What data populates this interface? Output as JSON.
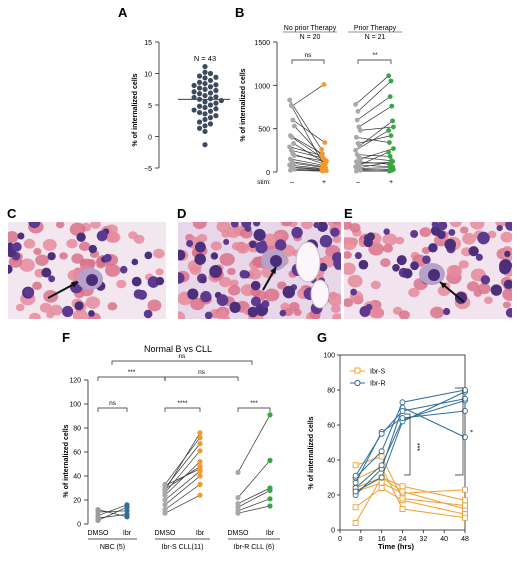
{
  "figure": {
    "panels": {
      "A": {
        "letter": "A",
        "ylabel": "% of internalized cells",
        "annotation": "N = 43",
        "yticks": [
          "15",
          "10",
          "5",
          "0",
          "−5"
        ]
      },
      "B": {
        "letter": "B",
        "ylabel": "% of internalized cells",
        "group1_title": "No prior Therapy",
        "group1_n": "N = 20",
        "group2_title": "Prior Therapy",
        "group2_n": "N = 21",
        "sig1": "ns",
        "sig2": "**",
        "stim_label": "stim:",
        "stim_minus": "–",
        "stim_plus": "+",
        "yticks": [
          "1500",
          "1000",
          "500",
          "0"
        ]
      },
      "C": {
        "letter": "C"
      },
      "D": {
        "letter": "D"
      },
      "E": {
        "letter": "E"
      },
      "F": {
        "letter": "F",
        "title": "Normal B vs CLL",
        "ylabel": "% of internalized cells",
        "yticks": [
          "120",
          "100",
          "80",
          "60",
          "40",
          "20",
          "0"
        ],
        "xlabels": [
          "DMSO",
          "Ibr",
          "DMSO",
          "Ibr",
          "DMSO",
          "Ibr"
        ],
        "groups": [
          "NBC (5)",
          "Ibr-S CLL(11)",
          "Ibr-R CLL (6)"
        ],
        "sig": [
          "ns",
          "****",
          "***",
          "***",
          "ns",
          "ns"
        ]
      },
      "G": {
        "letter": "G",
        "ylabel": "% of internalized cells",
        "xlabel": "Time (hrs)",
        "xticks": [
          "0",
          "8",
          "16",
          "24",
          "32",
          "40",
          "48"
        ],
        "yticks": [
          "100",
          "80",
          "60",
          "40",
          "20",
          "0"
        ],
        "legend": [
          "Ibr-S",
          "Ibr-R"
        ],
        "sig1": "***",
        "sig2": "*"
      }
    }
  },
  "chart_data": [
    {
      "panel": "A",
      "type": "scatter",
      "ylabel": "% of internalized cells",
      "ylim": [
        -5,
        15
      ],
      "n": 43,
      "median": 5.9,
      "values": [
        11.1,
        10.2,
        10.0,
        9.6,
        9.4,
        9.3,
        8.9,
        8.6,
        8.4,
        8.2,
        8.1,
        7.9,
        7.7,
        7.5,
        7.3,
        7.1,
        6.9,
        6.8,
        6.5,
        6.3,
        6.2,
        6.0,
        5.9,
        5.7,
        5.5,
        5.3,
        5.0,
        4.8,
        4.6,
        4.4,
        4.2,
        4.0,
        3.8,
        3.6,
        3.3,
        3.0,
        2.7,
        2.3,
        2.0,
        1.7,
        1.3,
        0.8,
        -1.3
      ]
    },
    {
      "panel": "B",
      "type": "line",
      "ylabel": "% of internalized cells",
      "ylim": [
        0,
        1500
      ],
      "categories": [
        "–",
        "+"
      ],
      "groups": [
        {
          "name": "No prior Therapy",
          "pairs": [
            [
              830,
              260
            ],
            [
              770,
              90
            ],
            [
              600,
              340
            ],
            [
              530,
              130
            ],
            [
              420,
              210
            ],
            [
              400,
              150
            ],
            [
              330,
              100
            ],
            [
              290,
              190
            ],
            [
              250,
              160
            ],
            [
              210,
              90
            ],
            [
              190,
              120
            ],
            [
              150,
              80
            ],
            [
              120,
              60
            ],
            [
              100,
              50
            ],
            [
              80,
              40
            ],
            [
              60,
              30
            ],
            [
              50,
              20
            ],
            [
              30,
              15
            ],
            [
              20,
              10
            ],
            [
              760,
              1010
            ]
          ]
        },
        {
          "name": "Prior Therapy",
          "pairs": [
            [
              780,
              1110
            ],
            [
              600,
              870
            ],
            [
              520,
              760
            ],
            [
              480,
              520
            ],
            [
              400,
              340
            ],
            [
              330,
              420
            ],
            [
              300,
              590
            ],
            [
              250,
              480
            ],
            [
              200,
              180
            ],
            [
              170,
              130
            ],
            [
              150,
              270
            ],
            [
              120,
              90
            ],
            [
              100,
              110
            ],
            [
              80,
              60
            ],
            [
              60,
              230
            ],
            [
              40,
              50
            ],
            [
              30,
              20
            ],
            [
              20,
              30
            ],
            [
              10,
              10
            ],
            [
              700,
              1050
            ],
            [
              50,
              120
            ]
          ]
        }
      ]
    },
    {
      "panel": "F",
      "type": "line",
      "title": "Normal B vs CLL",
      "ylabel": "% of internalized cells",
      "ylim": [
        0,
        120
      ],
      "categories": [
        "DMSO",
        "Ibr"
      ],
      "groups": [
        {
          "name": "NBC (5)",
          "pairs": [
            [
              3,
              14
            ],
            [
              5,
              8
            ],
            [
              7,
              16
            ],
            [
              10,
              11
            ],
            [
              12,
              6
            ]
          ]
        },
        {
          "name": "Ibr-S CLL(11)",
          "pairs": [
            [
              28,
              76
            ],
            [
              33,
              72
            ],
            [
              30,
              67
            ],
            [
              26,
              61
            ],
            [
              24,
              52
            ],
            [
              29,
              48
            ],
            [
              32,
              46
            ],
            [
              20,
              44
            ],
            [
              16,
              40
            ],
            [
              12,
              33
            ],
            [
              9,
              24
            ]
          ]
        },
        {
          "name": "Ibr-R CLL (6)",
          "pairs": [
            [
              43,
              91
            ],
            [
              22,
              53
            ],
            [
              17,
              30
            ],
            [
              14,
              28
            ],
            [
              11,
              21
            ],
            [
              9,
              15
            ]
          ]
        }
      ]
    },
    {
      "panel": "G",
      "type": "line",
      "ylabel": "% of internalized cells",
      "xlabel": "Time (hrs)",
      "xlim": [
        0,
        48
      ],
      "ylim": [
        0,
        100
      ],
      "x": [
        6,
        16,
        24,
        48
      ],
      "series": [
        {
          "name": "Ibr-S",
          "lines": [
            [
              4,
              30,
              25,
              17
            ],
            [
              13,
              24,
              17,
              9
            ],
            [
              22,
              27,
              21,
              23
            ],
            [
              24,
              30,
              22,
              12
            ],
            [
              29,
              36,
              12,
              7
            ],
            [
              37,
              42,
              18,
              14
            ]
          ]
        },
        {
          "name": "Ibr-R",
          "lines": [
            [
              20,
              35,
              70,
              53
            ],
            [
              24,
              37,
              63,
              74
            ],
            [
              22,
              30,
              62,
              79
            ],
            [
              30,
              45,
              73,
              80
            ],
            [
              27,
              56,
              64,
              68
            ],
            [
              31,
              55,
              68,
              75
            ]
          ]
        }
      ]
    }
  ]
}
